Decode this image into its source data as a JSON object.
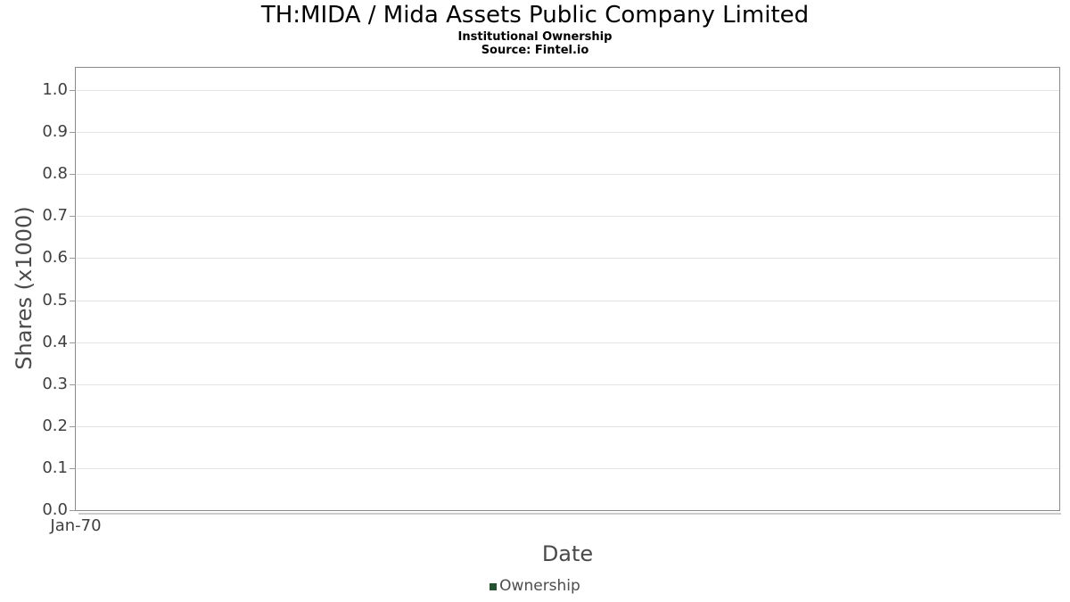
{
  "title": "TH:MIDA / Mida Assets Public Company Limited",
  "subtitle": "Institutional Ownership",
  "source": "Source: Fintel.io",
  "y_axis": {
    "label": "Shares (x1000)",
    "tick_labels": [
      "0.0",
      "0.1",
      "0.2",
      "0.3",
      "0.4",
      "0.5",
      "0.6",
      "0.7",
      "0.8",
      "0.9",
      "1.0"
    ]
  },
  "x_axis": {
    "label": "Date",
    "tick_labels": [
      "Jan-70"
    ]
  },
  "legend": {
    "items": [
      {
        "label": "Ownership",
        "color": "#275232"
      }
    ]
  },
  "colors": {
    "frame": "#8a8a8a",
    "gridline": "#e3e3e3",
    "tick_mark": "#9a9a9a",
    "tick_text": "#3f3f3f",
    "axis_label_text": "#4a4a4a",
    "legend_text": "#4d4d4d",
    "title_text": "#000000",
    "frame_shadow": "#cccccc",
    "series_green": "#275232"
  },
  "chart_data": {
    "type": "line",
    "title": "TH:MIDA / Mida Assets Public Company Limited",
    "subtitle": "Institutional Ownership",
    "source": "Source: Fintel.io",
    "xlabel": "Date",
    "ylabel": "Shares (x1000)",
    "x_tick_labels": [
      "Jan-70"
    ],
    "y_ticks": [
      0.0,
      0.1,
      0.2,
      0.3,
      0.4,
      0.5,
      0.6,
      0.7,
      0.8,
      0.9,
      1.0
    ],
    "ylim": [
      0,
      1.05
    ],
    "grid": true,
    "legend_position": "bottom-center",
    "series": [
      {
        "name": "Ownership",
        "color": "#275232",
        "x": [],
        "values": []
      }
    ]
  }
}
